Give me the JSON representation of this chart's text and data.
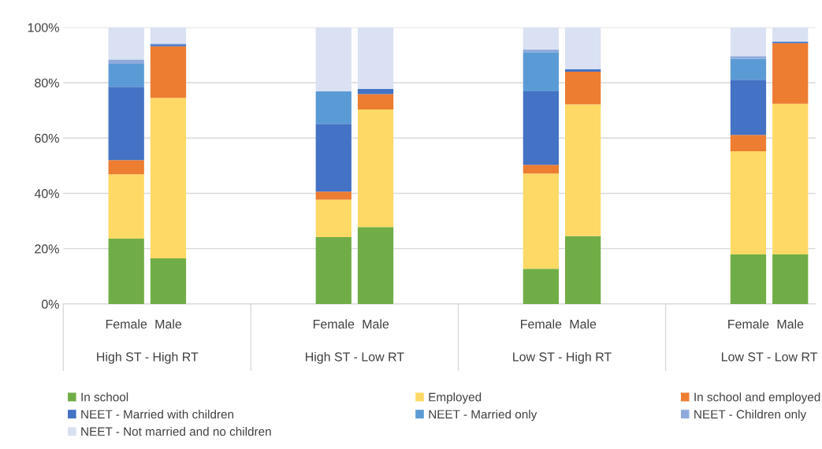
{
  "chart_data": {
    "type": "bar",
    "stacked": true,
    "categories": [
      "Female",
      "Male",
      "Female",
      "Male",
      "Female",
      "Male",
      "Female",
      "Male"
    ],
    "annotations": [
      "High ST - High RT",
      "High ST - Low RT",
      "Low ST - High RT",
      "Low ST - Low RT"
    ],
    "series": [
      {
        "name": "In school",
        "color": "#70ad47",
        "values": [
          23.6,
          16.5,
          24.2,
          27.8,
          12.7,
          24.5,
          17.9,
          17.9
        ]
      },
      {
        "name": "Employed",
        "color": "#ffd966",
        "values": [
          23.3,
          58,
          13.5,
          42.5,
          34.5,
          47.7,
          37.3,
          54.5
        ]
      },
      {
        "name": "In school and employed",
        "color": "#ed7d31",
        "values": [
          5.1,
          18.7,
          2.9,
          5.6,
          3.1,
          11.8,
          5.9,
          21.9
        ]
      },
      {
        "name": "NEET - Married with children",
        "color": "#4472c4",
        "values": [
          26.5,
          0.7,
          24.5,
          1.9,
          26.6,
          0.9,
          20,
          0.5
        ]
      },
      {
        "name": "NEET - Married only",
        "color": "#5b9bd5",
        "values": [
          8.3,
          0,
          11.8,
          0,
          14.1,
          0,
          7.6,
          0
        ]
      },
      {
        "name": "NEET - Children only",
        "color": "#8faadc",
        "values": [
          1.6,
          0.3,
          0,
          0,
          1,
          0,
          0.9,
          0
        ]
      },
      {
        "name": "NEET - Not married and no children",
        "color": "#d9e1f2",
        "values": [
          11.6,
          5.8,
          23.1,
          22.2,
          8,
          15.1,
          10.4,
          5.2
        ]
      }
    ],
    "ylim": [
      0,
      100
    ],
    "yticks": [
      {
        "value": 0,
        "label": "0%"
      },
      {
        "value": 20,
        "label": "20%"
      },
      {
        "value": 40,
        "label": "40%"
      },
      {
        "value": 60,
        "label": "60%"
      },
      {
        "value": 80,
        "label": "80%"
      },
      {
        "value": 100,
        "label": "100%"
      }
    ],
    "grid": "y",
    "legend": "bottom"
  }
}
